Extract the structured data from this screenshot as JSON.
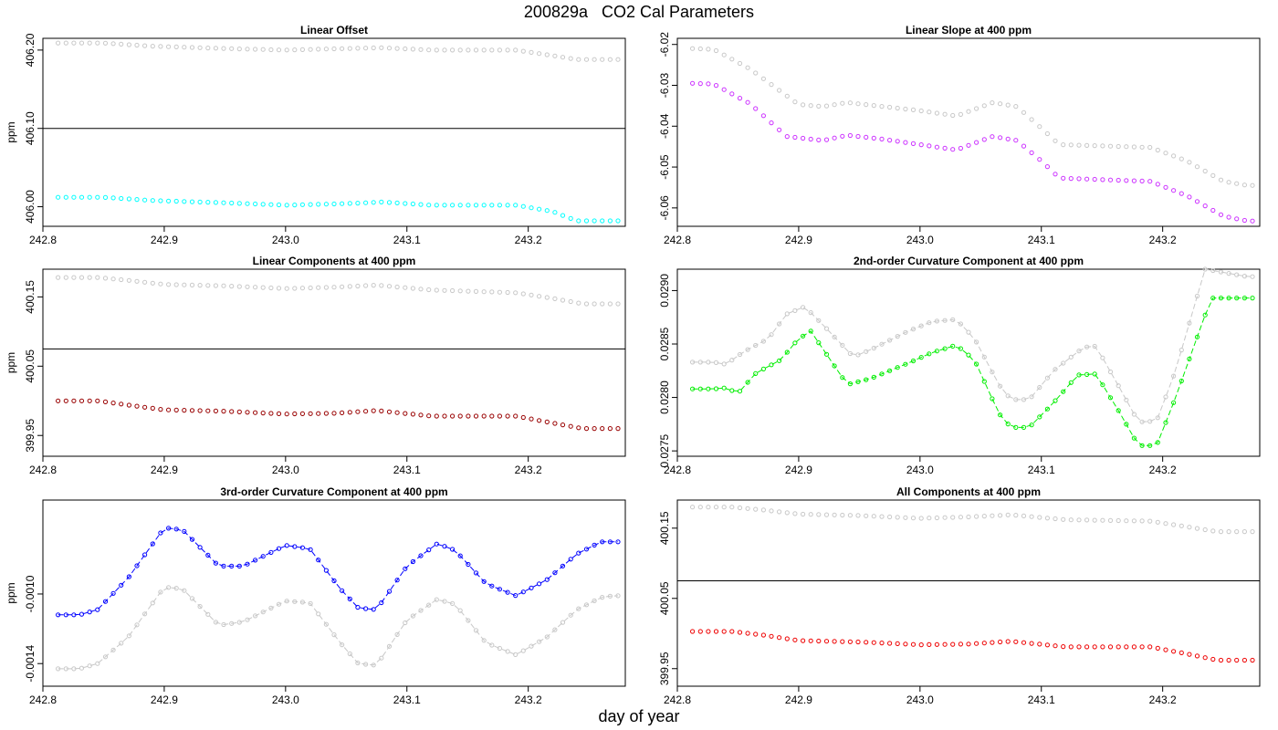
{
  "figure": {
    "title": "200829a   CO2 Cal Parameters",
    "xlabel": "day of year"
  },
  "chart_data": [
    {
      "type": "scatter",
      "title": "Linear Offset",
      "ylabel": "ppm",
      "xlim": [
        242.8,
        243.28
      ],
      "ylim": [
        405.975,
        406.215
      ],
      "xticks": [
        "242.8",
        "242.9",
        "243.0",
        "243.1",
        "243.2"
      ],
      "yticks": [
        "406.00",
        "406.10",
        "406.20"
      ],
      "hline": 406.1,
      "connected": false,
      "x_start": 242.8125,
      "x_step": 0.0065,
      "n_points": 72,
      "series": [
        {
          "color": "#c8c8c8",
          "knots": [
            [
              242.813,
              406.209
            ],
            [
              242.85,
              406.209
            ],
            [
              242.89,
              406.205
            ],
            [
              242.95,
              406.202
            ],
            [
              243.0,
              406.2
            ],
            [
              243.05,
              406.202
            ],
            [
              243.08,
              406.203
            ],
            [
              243.12,
              406.2
            ],
            [
              243.19,
              406.2
            ],
            [
              243.22,
              406.193
            ],
            [
              243.24,
              406.188
            ],
            [
              243.27,
              406.188
            ]
          ]
        },
        {
          "color": "#00ffff",
          "knots": [
            [
              242.813,
              406.012
            ],
            [
              242.85,
              406.012
            ],
            [
              242.89,
              406.008
            ],
            [
              242.95,
              406.005
            ],
            [
              243.0,
              406.002
            ],
            [
              243.05,
              406.004
            ],
            [
              243.08,
              406.006
            ],
            [
              243.12,
              406.002
            ],
            [
              243.19,
              406.002
            ],
            [
              243.22,
              405.994
            ],
            [
              243.24,
              405.982
            ],
            [
              243.27,
              405.982
            ]
          ]
        }
      ]
    },
    {
      "type": "scatter",
      "title": "Linear Slope at 400 ppm",
      "ylabel": "",
      "xlim": [
        242.8,
        243.28
      ],
      "ylim": [
        -6.0645,
        -6.0185
      ],
      "xticks": [
        "242.8",
        "242.9",
        "243.0",
        "243.1",
        "243.2"
      ],
      "yticks": [
        "-6.06",
        "-6.05",
        "-6.04",
        "-6.03",
        "-6.02"
      ],
      "hline": null,
      "connected": false,
      "x_start": 242.8125,
      "x_step": 0.0065,
      "n_points": 72,
      "series": [
        {
          "color": "#c8c8c8",
          "knots": [
            [
              242.813,
              -6.021
            ],
            [
              242.83,
              -6.0212
            ],
            [
              242.86,
              -6.026
            ],
            [
              242.9,
              -6.0347
            ],
            [
              242.92,
              -6.0352
            ],
            [
              242.94,
              -6.0342
            ],
            [
              242.97,
              -6.0352
            ],
            [
              243.0,
              -6.0362
            ],
            [
              243.03,
              -6.0375
            ],
            [
              243.06,
              -6.0342
            ],
            [
              243.08,
              -6.0352
            ],
            [
              243.1,
              -6.0405
            ],
            [
              243.115,
              -6.0445
            ],
            [
              243.19,
              -6.0452
            ],
            [
              243.22,
              -6.0485
            ],
            [
              243.25,
              -6.0535
            ],
            [
              243.27,
              -6.0545
            ]
          ]
        },
        {
          "color": "#cc33ff",
          "knots": [
            [
              242.813,
              -6.0295
            ],
            [
              242.83,
              -6.0297
            ],
            [
              242.86,
              -6.0345
            ],
            [
              242.89,
              -6.0425
            ],
            [
              242.92,
              -6.0435
            ],
            [
              242.94,
              -6.0422
            ],
            [
              242.97,
              -6.0432
            ],
            [
              243.0,
              -6.0445
            ],
            [
              243.03,
              -6.0458
            ],
            [
              243.06,
              -6.0425
            ],
            [
              243.08,
              -6.0435
            ],
            [
              243.1,
              -6.0485
            ],
            [
              243.115,
              -6.0527
            ],
            [
              243.19,
              -6.0535
            ],
            [
              243.22,
              -6.057
            ],
            [
              243.25,
              -6.062
            ],
            [
              243.27,
              -6.0632
            ]
          ]
        }
      ]
    },
    {
      "type": "scatter",
      "title": "Linear Components at 400 ppm",
      "ylabel": "ppm",
      "xlim": [
        242.8,
        243.28
      ],
      "ylim": [
        399.92,
        400.19
      ],
      "xticks": [
        "242.8",
        "242.9",
        "243.0",
        "243.1",
        "243.2"
      ],
      "yticks": [
        "399.95",
        "400.05",
        "400.15"
      ],
      "hline": 400.075,
      "connected": false,
      "x_start": 242.8125,
      "x_step": 0.0065,
      "n_points": 72,
      "series": [
        {
          "color": "#c8c8c8",
          "knots": [
            [
              242.813,
              400.178
            ],
            [
              242.845,
              400.178
            ],
            [
              242.87,
              400.174
            ],
            [
              242.9,
              400.168
            ],
            [
              242.95,
              400.166
            ],
            [
              243.0,
              400.162
            ],
            [
              243.04,
              400.164
            ],
            [
              243.075,
              400.167
            ],
            [
              243.12,
              400.16
            ],
            [
              243.19,
              400.156
            ],
            [
              243.22,
              400.148
            ],
            [
              243.245,
              400.14
            ],
            [
              243.27,
              400.14
            ]
          ]
        },
        {
          "color": "#990000",
          "knots": [
            [
              242.813,
              400.0
            ],
            [
              242.845,
              400.0
            ],
            [
              242.87,
              399.994
            ],
            [
              242.9,
              399.987
            ],
            [
              242.95,
              399.985
            ],
            [
              243.0,
              399.981
            ],
            [
              243.04,
              399.982
            ],
            [
              243.075,
              399.986
            ],
            [
              243.12,
              399.978
            ],
            [
              243.19,
              399.978
            ],
            [
              243.22,
              399.968
            ],
            [
              243.245,
              399.96
            ],
            [
              243.27,
              399.96
            ]
          ]
        }
      ]
    },
    {
      "type": "line",
      "title": "2nd-order Curvature Component at 400 ppm",
      "ylabel": "",
      "xlim": [
        242.8,
        243.28
      ],
      "ylim": [
        0.02745,
        0.0292
      ],
      "xticks": [
        "242.8",
        "242.9",
        "243.0",
        "243.1",
        "243.2"
      ],
      "yticks": [
        "0.0275",
        "0.0280",
        "0.0285",
        "0.0290"
      ],
      "hline": null,
      "connected": true,
      "x_start": 242.8125,
      "x_step": 0.0065,
      "n_points": 72,
      "series": [
        {
          "color": "#c8c8c8",
          "knots": [
            [
              242.813,
              0.02833
            ],
            [
              242.83,
              0.02833
            ],
            [
              242.84,
              0.02831
            ],
            [
              242.855,
              0.02843
            ],
            [
              242.875,
              0.02855
            ],
            [
              242.89,
              0.02878
            ],
            [
              242.905,
              0.02885
            ],
            [
              242.92,
              0.02868
            ],
            [
              242.945,
              0.02838
            ],
            [
              242.96,
              0.02845
            ],
            [
              242.99,
              0.02862
            ],
            [
              243.01,
              0.02871
            ],
            [
              243.03,
              0.02873
            ],
            [
              243.045,
              0.02855
            ],
            [
              243.065,
              0.02812
            ],
            [
              243.075,
              0.02798
            ],
            [
              243.09,
              0.02798
            ],
            [
              243.11,
              0.02825
            ],
            [
              243.135,
              0.02847
            ],
            [
              243.145,
              0.02848
            ],
            [
              243.165,
              0.02808
            ],
            [
              243.18,
              0.02777
            ],
            [
              243.195,
              0.02778
            ],
            [
              243.21,
              0.02823
            ],
            [
              243.235,
              0.0292
            ],
            [
              243.27,
              0.02913
            ]
          ]
        },
        {
          "color": "#00ee00",
          "knots": [
            [
              242.813,
              0.02808
            ],
            [
              242.83,
              0.02808
            ],
            [
              242.84,
              0.02809
            ],
            [
              242.85,
              0.02804
            ],
            [
              242.865,
              0.02823
            ],
            [
              242.885,
              0.02835
            ],
            [
              242.9,
              0.02855
            ],
            [
              242.91,
              0.02862
            ],
            [
              242.94,
              0.02812
            ],
            [
              242.96,
              0.02818
            ],
            [
              242.99,
              0.02832
            ],
            [
              243.01,
              0.02842
            ],
            [
              243.03,
              0.02849
            ],
            [
              243.045,
              0.02835
            ],
            [
              243.065,
              0.02785
            ],
            [
              243.075,
              0.02772
            ],
            [
              243.09,
              0.02772
            ],
            [
              243.11,
              0.02795
            ],
            [
              243.13,
              0.02821
            ],
            [
              243.145,
              0.02822
            ],
            [
              243.165,
              0.02785
            ],
            [
              243.18,
              0.02755
            ],
            [
              243.195,
              0.02755
            ],
            [
              243.21,
              0.02798
            ],
            [
              243.24,
              0.02893
            ],
            [
              243.27,
              0.02893
            ]
          ]
        }
      ]
    },
    {
      "type": "line",
      "title": "3rd-order Curvature Component at 400 ppm",
      "ylabel": "ppm",
      "xlim": [
        242.8,
        243.28
      ],
      "ylim": [
        -0.00153,
        -0.00046
      ],
      "xticks": [
        "242.8",
        "242.9",
        "243.0",
        "243.1",
        "243.2"
      ],
      "yticks": [
        "-0.0014",
        "-0.0010"
      ],
      "hline": null,
      "connected": true,
      "x_start": 242.8125,
      "x_step": 0.0065,
      "n_points": 72,
      "series": [
        {
          "color": "#c8c8c8",
          "knots": [
            [
              242.813,
              -0.00143
            ],
            [
              242.83,
              -0.00143
            ],
            [
              242.845,
              -0.0014
            ],
            [
              242.87,
              -0.00125
            ],
            [
              242.9,
              -0.00096
            ],
            [
              242.915,
              -0.00097
            ],
            [
              242.945,
              -0.00118
            ],
            [
              242.965,
              -0.00116
            ],
            [
              243.0,
              -0.00104
            ],
            [
              243.02,
              -0.00105
            ],
            [
              243.045,
              -0.00128
            ],
            [
              243.06,
              -0.0014
            ],
            [
              243.075,
              -0.00141
            ],
            [
              243.1,
              -0.00115
            ],
            [
              243.125,
              -0.00103
            ],
            [
              243.14,
              -0.00106
            ],
            [
              243.165,
              -0.00128
            ],
            [
              243.19,
              -0.00135
            ],
            [
              243.215,
              -0.00125
            ],
            [
              243.24,
              -0.00109
            ],
            [
              243.26,
              -0.00102
            ],
            [
              243.27,
              -0.00101
            ]
          ]
        },
        {
          "color": "#0000ff",
          "knots": [
            [
              242.813,
              -0.00112
            ],
            [
              242.83,
              -0.00112
            ],
            [
              242.845,
              -0.00109
            ],
            [
              242.87,
              -0.00091
            ],
            [
              242.9,
              -0.00062
            ],
            [
              242.915,
              -0.00063
            ],
            [
              242.945,
              -0.00084
            ],
            [
              242.965,
              -0.00084
            ],
            [
              243.0,
              -0.00072
            ],
            [
              243.02,
              -0.00074
            ],
            [
              243.045,
              -0.00097
            ],
            [
              243.06,
              -0.00108
            ],
            [
              243.075,
              -0.00109
            ],
            [
              243.1,
              -0.00084
            ],
            [
              243.125,
              -0.00071
            ],
            [
              243.14,
              -0.00075
            ],
            [
              243.165,
              -0.00094
            ],
            [
              243.19,
              -0.00101
            ],
            [
              243.215,
              -0.00092
            ],
            [
              243.24,
              -0.00077
            ],
            [
              243.26,
              -0.0007
            ],
            [
              243.27,
              -0.0007
            ]
          ]
        }
      ]
    },
    {
      "type": "scatter",
      "title": "All Components at 400 ppm",
      "ylabel": "",
      "xlim": [
        242.8,
        243.28
      ],
      "ylim": [
        399.925,
        400.19
      ],
      "xticks": [
        "242.8",
        "242.9",
        "243.0",
        "243.1",
        "243.2"
      ],
      "yticks": [
        "399.95",
        "400.05",
        "400.15"
      ],
      "hline": 400.075,
      "connected": false,
      "x_start": 242.8125,
      "x_step": 0.0065,
      "n_points": 72,
      "series": [
        {
          "color": "#c8c8c8",
          "knots": [
            [
              242.813,
              400.18
            ],
            [
              242.845,
              400.18
            ],
            [
              242.87,
              400.176
            ],
            [
              242.9,
              400.17
            ],
            [
              242.95,
              400.168
            ],
            [
              243.0,
              400.164
            ],
            [
              243.04,
              400.166
            ],
            [
              243.075,
              400.169
            ],
            [
              243.12,
              400.162
            ],
            [
              243.19,
              400.16
            ],
            [
              243.22,
              400.152
            ],
            [
              243.245,
              400.145
            ],
            [
              243.27,
              400.145
            ]
          ]
        },
        {
          "color": "#ee0000",
          "knots": [
            [
              242.813,
              400.003
            ],
            [
              242.845,
              400.003
            ],
            [
              242.87,
              399.998
            ],
            [
              242.9,
              399.99
            ],
            [
              242.95,
              399.988
            ],
            [
              243.0,
              399.984
            ],
            [
              243.04,
              399.985
            ],
            [
              243.075,
              399.989
            ],
            [
              243.12,
              399.981
            ],
            [
              243.19,
              399.981
            ],
            [
              243.22,
              399.971
            ],
            [
              243.245,
              399.962
            ],
            [
              243.27,
              399.962
            ]
          ]
        }
      ]
    }
  ]
}
